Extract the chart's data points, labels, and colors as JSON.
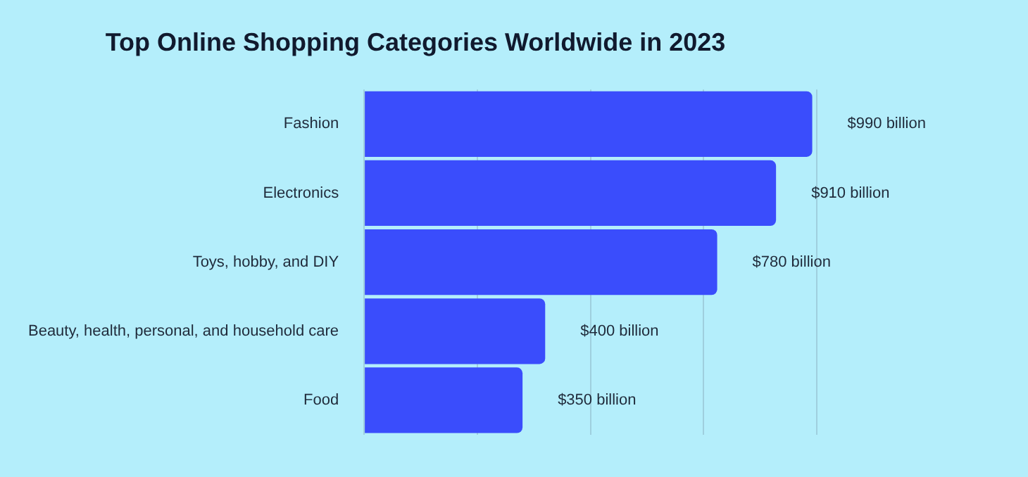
{
  "chart_data": {
    "type": "bar",
    "orientation": "horizontal",
    "title": "Top Online Shopping Categories Worldwide in 2023",
    "categories": [
      "Fashion",
      "Electronics",
      "Toys, hobby, and DIY",
      "Beauty, health, personal, and household care",
      "Food"
    ],
    "values": [
      990,
      910,
      780,
      400,
      350
    ],
    "value_labels": [
      "$990 billion",
      "$910 billion",
      "$780 billion",
      "$400 billion",
      "$350 billion"
    ],
    "color": "#3a4dfc",
    "xlim": [
      0,
      1000
    ],
    "xticks": [
      {
        "value": 0,
        "label": null
      },
      {
        "value": 250,
        "label": null
      },
      {
        "value": 500,
        "label": null
      },
      {
        "value": 750,
        "label": null
      },
      {
        "value": 1000,
        "label": null
      }
    ],
    "grid": "x",
    "tick_labels": "y",
    "legend": false
  }
}
